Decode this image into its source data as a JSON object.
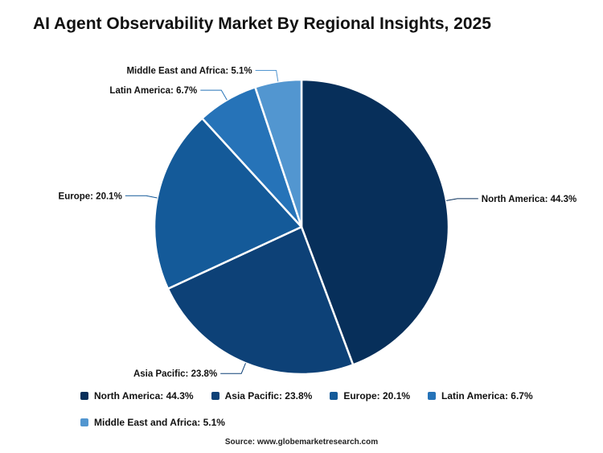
{
  "chart_data": {
    "type": "pie",
    "title": "AI Agent Observability Market By Regional Insights, 2025",
    "slices": [
      {
        "name": "North America",
        "value": 44.3,
        "label": "North America: 44.3%",
        "color": "#072f5a"
      },
      {
        "name": "Asia Pacific",
        "value": 23.8,
        "label": "Asia Pacific: 23.8%",
        "color": "#0d4177"
      },
      {
        "name": "Europe",
        "value": 20.1,
        "label": "Europe: 20.1%",
        "color": "#145a99"
      },
      {
        "name": "Latin America",
        "value": 6.7,
        "label": "Latin America: 6.7%",
        "color": "#2673b8"
      },
      {
        "name": "Middle East and Africa",
        "value": 5.1,
        "label": "Middle East and Africa: 5.1%",
        "color": "#5296d0"
      }
    ],
    "legend_position": "bottom",
    "source": "Source: www.globemarketresearch.com"
  }
}
